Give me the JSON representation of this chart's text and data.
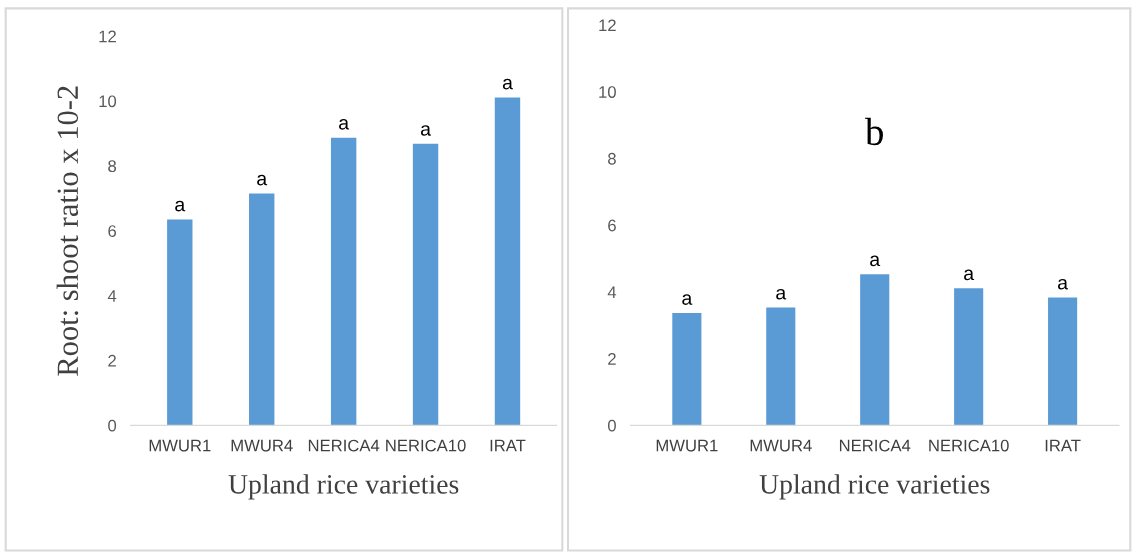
{
  "chart_data": [
    {
      "type": "bar",
      "ylabel": "Root: shoot ratio x 10-2",
      "xlabel": "Upland rice varieties",
      "categories": [
        "MWUR1",
        "MWUR4",
        "NERICA4",
        "NERICA10",
        "IRAT"
      ],
      "values": [
        6.35,
        7.15,
        8.87,
        8.68,
        10.11
      ],
      "value_labels": [
        "a",
        "a",
        "a",
        "a",
        "a"
      ],
      "color": "#5b9bd5",
      "ylim": [
        0,
        12
      ],
      "yticks": [
        0,
        2,
        4,
        6,
        8,
        10,
        12
      ],
      "grid": false,
      "legend": false
    },
    {
      "type": "bar",
      "title": "b",
      "xlabel": "Upland rice varieties",
      "categories": [
        "MWUR1",
        "MWUR4",
        "NERICA4",
        "NERICA10",
        "IRAT"
      ],
      "values": [
        3.37,
        3.53,
        4.53,
        4.11,
        3.83
      ],
      "value_labels": [
        "a",
        "a",
        "a",
        "a",
        "a"
      ],
      "color": "#5b9bd5",
      "ylim": [
        0,
        12
      ],
      "yticks": [
        0,
        2,
        4,
        6,
        8,
        10,
        12
      ],
      "grid": false,
      "legend": false
    }
  ]
}
